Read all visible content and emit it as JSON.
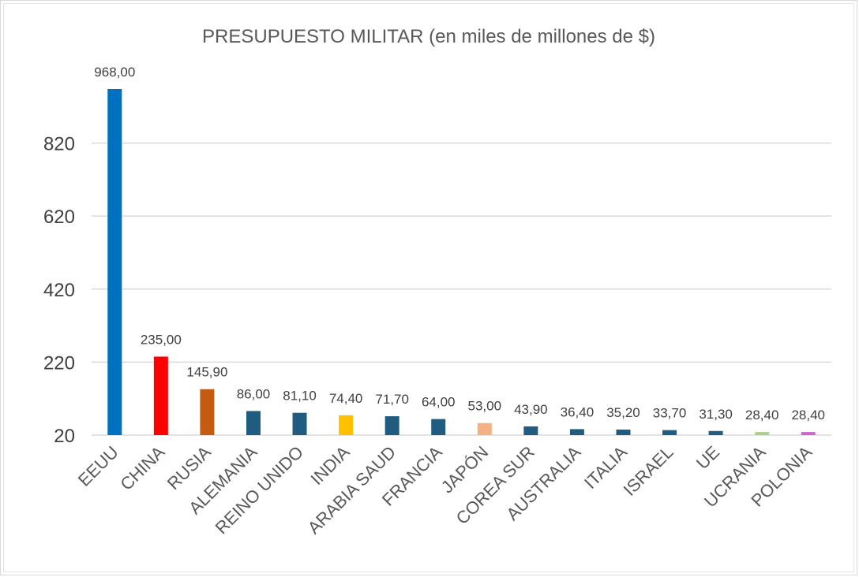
{
  "chart_data": {
    "type": "bar",
    "title": "PRESUPUESTO MILITAR (en miles de millones de $)",
    "xlabel": "",
    "ylabel": "",
    "ylim": [
      20,
      968
    ],
    "yticks": [
      20,
      220,
      420,
      620,
      820
    ],
    "ytick_labels": [
      "20",
      "220",
      "420",
      "620",
      "820"
    ],
    "grid": true,
    "legend": "none",
    "categories": [
      "EEUU",
      "CHINA",
      "RUSIA",
      "ALEMANIA",
      "REINO UNIDO",
      "INDIA",
      "ARABIA SAUD",
      "FRANCIA",
      "JAPÓN",
      "COREA SUR",
      "AUSTRALIA",
      "ITALIA",
      "ISRAEL",
      "UE",
      "UCRANIA",
      "POLONIA"
    ],
    "values": [
      968.0,
      235.0,
      145.9,
      86.0,
      81.1,
      74.4,
      71.7,
      64.0,
      53.0,
      43.9,
      36.4,
      35.2,
      33.7,
      31.3,
      28.4,
      28.4
    ],
    "data_labels": [
      "968,00",
      "235,00",
      "145,90",
      "86,00",
      "81,10",
      "74,40",
      "71,70",
      "64,00",
      "53,00",
      "43,90",
      "36,40",
      "35,20",
      "33,70",
      "31,30",
      "28,40",
      "28,40"
    ],
    "colors": [
      "#0070C0",
      "#FF0000",
      "#C55A11",
      "#1F5C80",
      "#1F5C80",
      "#FFC000",
      "#1F5C80",
      "#1F5C80",
      "#F4B183",
      "#1F5C80",
      "#1F5C80",
      "#1F5C80",
      "#1F5C80",
      "#1F5C80",
      "#A9D18E",
      "#CC66CC"
    ],
    "gridline_color": "#d9d9d9"
  }
}
